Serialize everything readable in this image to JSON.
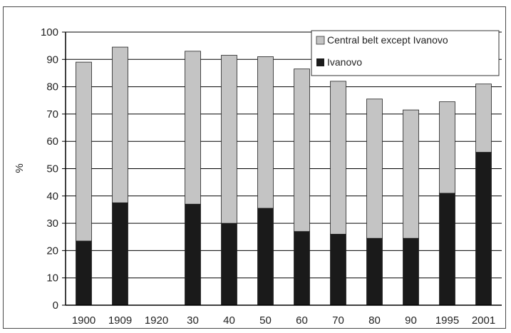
{
  "chart_data": {
    "type": "bar",
    "stacked": true,
    "categories": [
      "1900",
      "1909",
      "1920",
      "30",
      "40",
      "50",
      "60",
      "70",
      "80",
      "90",
      "1995",
      "2001"
    ],
    "series": [
      {
        "name": "Ivanovo",
        "color": "#1a1a1a",
        "values": [
          23.5,
          37.5,
          null,
          37,
          30,
          35.5,
          27,
          26,
          24.5,
          24.5,
          41,
          56
        ]
      },
      {
        "name": "Central belt except Ivanovo",
        "color": "#c4c4c4",
        "values": [
          65.5,
          57,
          null,
          56,
          61.5,
          55.5,
          59.5,
          56,
          51,
          47,
          33.5,
          25
        ]
      }
    ],
    "ylabel": "%",
    "xlabel": "",
    "title": "",
    "ylim": [
      0,
      100
    ],
    "yticks": [
      "0",
      "10",
      "20",
      "30",
      "40",
      "50",
      "60",
      "70",
      "80",
      "90",
      "100"
    ],
    "grid": "horizontal",
    "legend_position": "top-right"
  }
}
